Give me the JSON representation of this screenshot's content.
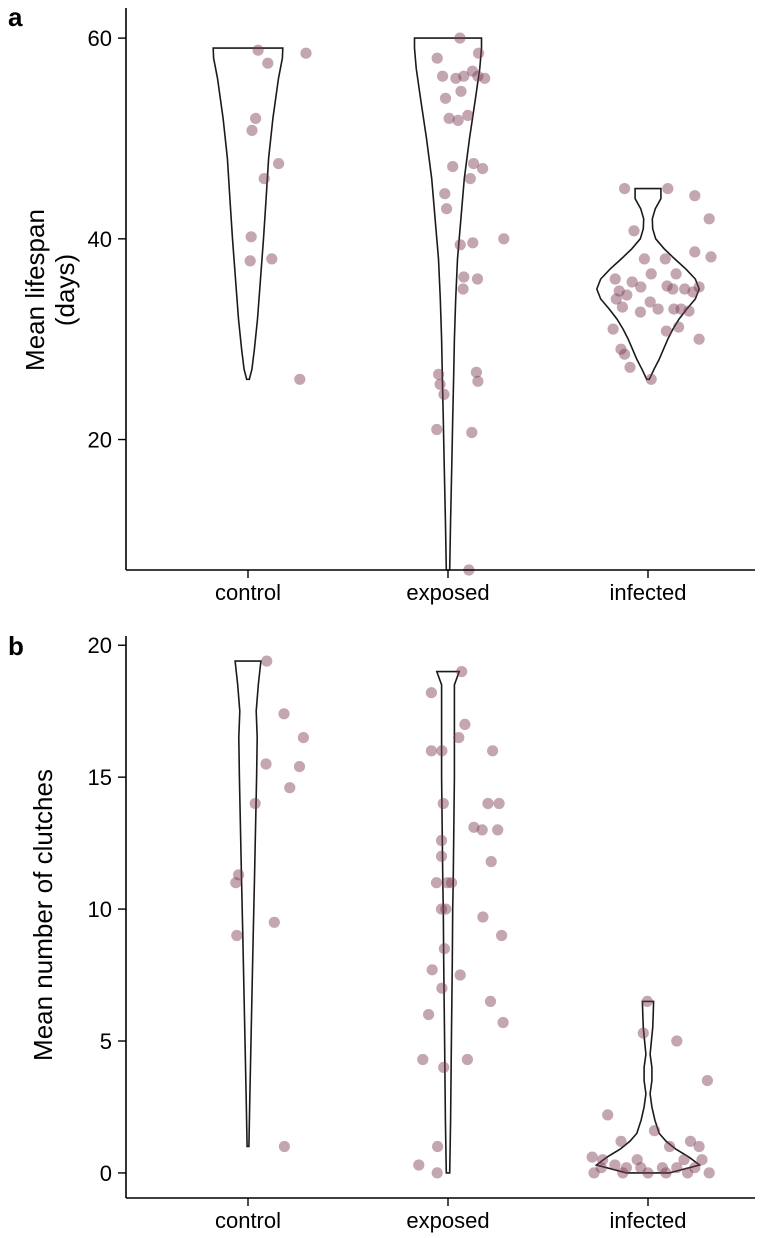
{
  "chart_data": [
    {
      "type": "scatter",
      "panel": "a",
      "ylabel": [
        "Mean lifespan",
        "(days)"
      ],
      "xlabel": "",
      "categories": [
        "control",
        "exposed",
        "infected"
      ],
      "ylim": [
        7,
        63
      ],
      "yticks": [
        20,
        40,
        60
      ],
      "violins": [
        {
          "category": "control",
          "min": 26,
          "max": 59,
          "profile": [
            [
              26,
              0.3
            ],
            [
              27,
              0.9
            ],
            [
              29,
              1.5
            ],
            [
              32,
              2.2
            ],
            [
              36,
              2.9
            ],
            [
              40,
              3.6
            ],
            [
              44,
              4.2
            ],
            [
              48,
              4.8
            ],
            [
              52,
              5.8
            ],
            [
              56,
              7.1
            ],
            [
              58,
              8.0
            ],
            [
              59,
              8.1
            ]
          ]
        },
        {
          "category": "exposed",
          "min": 7,
          "max": 60,
          "profile": [
            [
              7,
              0.4
            ],
            [
              12,
              0.6
            ],
            [
              18,
              0.9
            ],
            [
              22,
              1.1
            ],
            [
              26,
              1.3
            ],
            [
              30,
              1.5
            ],
            [
              34,
              1.8
            ],
            [
              38,
              2.2
            ],
            [
              42,
              3.0
            ],
            [
              46,
              3.8
            ],
            [
              50,
              5.0
            ],
            [
              54,
              6.4
            ],
            [
              57,
              7.4
            ],
            [
              59,
              7.8
            ],
            [
              60,
              7.8
            ]
          ]
        },
        {
          "category": "infected",
          "min": 26,
          "max": 45,
          "profile": [
            [
              26,
              0.3
            ],
            [
              27,
              1.4
            ],
            [
              28,
              2.6
            ],
            [
              29,
              3.6
            ],
            [
              30,
              4.6
            ],
            [
              31,
              5.8
            ],
            [
              32,
              7.2
            ],
            [
              33,
              9.0
            ],
            [
              34,
              11.0
            ],
            [
              35,
              11.9
            ],
            [
              36,
              11.0
            ],
            [
              37,
              8.8
            ],
            [
              38,
              6.2
            ],
            [
              39,
              3.8
            ],
            [
              40,
              1.8
            ],
            [
              41,
              1.1
            ],
            [
              42,
              1.0
            ],
            [
              43,
              1.7
            ],
            [
              44,
              3.0
            ],
            [
              45,
              3.0
            ]
          ]
        }
      ],
      "series": [
        {
          "name": "control",
          "points": [
            [
              0.28,
              58.8
            ],
            [
              0.55,
              57.5
            ],
            [
              1.61,
              58.5
            ],
            [
              0.21,
              52
            ],
            [
              0.11,
              50.8
            ],
            [
              0.45,
              46
            ],
            [
              0.85,
              47.5
            ],
            [
              0.09,
              40.2
            ],
            [
              0.06,
              37.8
            ],
            [
              0.66,
              38
            ],
            [
              1.44,
              26
            ]
          ]
        },
        {
          "name": "exposed",
          "points": [
            [
              -0.3,
              58
            ],
            [
              -0.15,
              56.2
            ],
            [
              0.22,
              56
            ],
            [
              0.44,
              56.2
            ],
            [
              0.68,
              56.7
            ],
            [
              0.83,
              56.2
            ],
            [
              1.02,
              56
            ],
            [
              0.33,
              60
            ],
            [
              0.85,
              58.5
            ],
            [
              -0.07,
              54
            ],
            [
              0.36,
              54.7
            ],
            [
              0.03,
              52
            ],
            [
              0.28,
              51.8
            ],
            [
              0.55,
              52.3
            ],
            [
              0.13,
              47.2
            ],
            [
              0.71,
              47.5
            ],
            [
              0.96,
              47
            ],
            [
              0.62,
              46
            ],
            [
              -0.09,
              44.5
            ],
            [
              -0.04,
              43
            ],
            [
              0.34,
              39.4
            ],
            [
              0.69,
              39.6
            ],
            [
              1.55,
              40
            ],
            [
              0.44,
              36.2
            ],
            [
              0.82,
              36
            ],
            [
              0.42,
              35
            ],
            [
              -0.26,
              26.5
            ],
            [
              -0.22,
              25.5
            ],
            [
              0.79,
              26.7
            ],
            [
              0.83,
              25.8
            ],
            [
              -0.11,
              24.5
            ],
            [
              -0.31,
              21
            ],
            [
              0.66,
              20.7
            ],
            [
              0.58,
              7
            ]
          ]
        },
        {
          "name": "infected",
          "points": [
            [
              -0.65,
              45
            ],
            [
              0.55,
              45
            ],
            [
              1.3,
              44.3
            ],
            [
              1.7,
              42
            ],
            [
              -0.39,
              40.8
            ],
            [
              1.3,
              38.7
            ],
            [
              1.75,
              38.2
            ],
            [
              -0.1,
              38
            ],
            [
              0.48,
              38
            ],
            [
              0.09,
              36.5
            ],
            [
              0.78,
              36.5
            ],
            [
              -0.91,
              36
            ],
            [
              -0.44,
              35.7
            ],
            [
              -0.2,
              35.2
            ],
            [
              -0.8,
              34.8
            ],
            [
              1.02,
              35
            ],
            [
              1.25,
              34.7
            ],
            [
              1.42,
              35.2
            ],
            [
              0.69,
              35
            ],
            [
              0.53,
              35.3
            ],
            [
              -0.59,
              34.4
            ],
            [
              -0.88,
              34
            ],
            [
              0.06,
              33.7
            ],
            [
              -0.71,
              33.2
            ],
            [
              0.28,
              33
            ],
            [
              0.72,
              33
            ],
            [
              0.92,
              33
            ],
            [
              1.14,
              32.8
            ],
            [
              -0.21,
              32.7
            ],
            [
              0.51,
              30.8
            ],
            [
              0.85,
              31.2
            ],
            [
              -0.97,
              31
            ],
            [
              1.42,
              30
            ],
            [
              -0.75,
              29
            ],
            [
              -0.65,
              28.5
            ],
            [
              -0.5,
              27.2
            ],
            [
              0.09,
              26
            ]
          ]
        }
      ]
    },
    {
      "type": "scatter",
      "panel": "b",
      "ylabel": [
        "Mean number of clutches"
      ],
      "xlabel": "",
      "categories": [
        "control",
        "exposed",
        "infected"
      ],
      "ylim": [
        -0.95,
        20.35
      ],
      "yticks": [
        0,
        5,
        10,
        15,
        20
      ],
      "violins": [
        {
          "category": "control",
          "min": 1,
          "max": 19.4,
          "profile": [
            [
              1,
              0.2
            ],
            [
              3,
              0.45
            ],
            [
              5,
              0.7
            ],
            [
              7,
              0.95
            ],
            [
              9,
              1.2
            ],
            [
              11,
              1.5
            ],
            [
              13,
              1.75
            ],
            [
              15,
              2.0
            ],
            [
              16.5,
              2.15
            ],
            [
              17.5,
              1.9
            ],
            [
              18.5,
              2.4
            ],
            [
              19.4,
              3.0
            ]
          ]
        },
        {
          "category": "exposed",
          "min": 0,
          "max": 19,
          "profile": [
            [
              0,
              0.4
            ],
            [
              2,
              0.6
            ],
            [
              5,
              0.8
            ],
            [
              8,
              1.0
            ],
            [
              10,
              1.1
            ],
            [
              11,
              1.2
            ],
            [
              13,
              1.35
            ],
            [
              15,
              1.5
            ],
            [
              17,
              1.5
            ],
            [
              18.5,
              1.5
            ],
            [
              19,
              2.6
            ]
          ]
        },
        {
          "category": "infected",
          "min": 0,
          "max": 6.5,
          "profile": [
            [
              0,
              5.0
            ],
            [
              0.3,
              12.0
            ],
            [
              0.6,
              9.5
            ],
            [
              0.9,
              6.5
            ],
            [
              1.2,
              4.2
            ],
            [
              1.5,
              2.6
            ],
            [
              2,
              1.6
            ],
            [
              2.5,
              0.9
            ],
            [
              3,
              0.5
            ],
            [
              3.5,
              0.9
            ],
            [
              4,
              0.9
            ],
            [
              4.5,
              0.5
            ],
            [
              5,
              0.8
            ],
            [
              5.5,
              1.1
            ],
            [
              6,
              1.2
            ],
            [
              6.5,
              1.3
            ]
          ]
        }
      ],
      "series": [
        {
          "name": "control",
          "points": [
            [
              0.52,
              19.4
            ],
            [
              1.0,
              17.4
            ],
            [
              1.54,
              16.5
            ],
            [
              0.5,
              15.5
            ],
            [
              1.43,
              15.4
            ],
            [
              0.2,
              14
            ],
            [
              1.16,
              14.6
            ],
            [
              -0.26,
              11.3
            ],
            [
              -0.34,
              11
            ],
            [
              -0.31,
              9
            ],
            [
              0.73,
              9.5
            ],
            [
              1.01,
              1
            ]
          ]
        },
        {
          "name": "exposed",
          "points": [
            [
              -0.46,
              18.2
            ],
            [
              0.38,
              19
            ],
            [
              0.47,
              17
            ],
            [
              0.3,
              16.5
            ],
            [
              -0.46,
              16
            ],
            [
              -0.17,
              16
            ],
            [
              1.24,
              16
            ],
            [
              -0.13,
              14
            ],
            [
              0.72,
              13.1
            ],
            [
              0.95,
              13
            ],
            [
              1.11,
              14
            ],
            [
              1.42,
              14
            ],
            [
              1.38,
              13
            ],
            [
              -0.18,
              12.6
            ],
            [
              -0.18,
              12
            ],
            [
              -0.32,
              11
            ],
            [
              -0.02,
              11
            ],
            [
              0.1,
              11
            ],
            [
              1.2,
              11.8
            ],
            [
              -0.18,
              10
            ],
            [
              -0.06,
              10
            ],
            [
              0.97,
              9.7
            ],
            [
              1.49,
              9
            ],
            [
              -0.1,
              8.5
            ],
            [
              -0.44,
              7.7
            ],
            [
              -0.17,
              7
            ],
            [
              0.34,
              7.5
            ],
            [
              -0.54,
              6
            ],
            [
              1.18,
              6.5
            ],
            [
              1.53,
              5.7
            ],
            [
              -0.7,
              4.3
            ],
            [
              0.54,
              4.3
            ],
            [
              -0.12,
              4
            ],
            [
              -0.29,
              1
            ],
            [
              -0.81,
              0.3
            ],
            [
              -0.3,
              0
            ]
          ]
        },
        {
          "name": "infected",
          "points": [
            [
              -0.02,
              6.5
            ],
            [
              -0.13,
              5.3
            ],
            [
              0.8,
              5
            ],
            [
              1.65,
              3.5
            ],
            [
              -1.12,
              2.2
            ],
            [
              -0.75,
              1.2
            ],
            [
              0.18,
              1.6
            ],
            [
              0.6,
              1
            ],
            [
              1.18,
              1.2
            ],
            [
              1.42,
              1
            ],
            [
              -1.55,
              0.6
            ],
            [
              -1.26,
              0.5
            ],
            [
              -0.3,
              0.5
            ],
            [
              1.0,
              0.5
            ],
            [
              1.5,
              0.5
            ],
            [
              -0.92,
              0.3
            ],
            [
              -1.3,
              0.2
            ],
            [
              -0.6,
              0.2
            ],
            [
              -0.2,
              0.2
            ],
            [
              0.4,
              0.2
            ],
            [
              0.8,
              0.2
            ],
            [
              1.3,
              0.2
            ],
            [
              -1.5,
              0
            ],
            [
              -0.7,
              0
            ],
            [
              0,
              0
            ],
            [
              0.5,
              0
            ],
            [
              1.1,
              0
            ],
            [
              1.7,
              0
            ]
          ]
        }
      ]
    }
  ],
  "colors": {
    "point": "#7a3a55",
    "axis": "#000000",
    "violin_stroke": "#1a1a1a",
    "background": "#ffffff"
  },
  "panels": [
    {
      "letter": "a",
      "ytick_labels": [
        "20",
        "40",
        "60"
      ],
      "ylabel_lines": [
        "Mean lifespan",
        "(days)"
      ],
      "xtick_labels": [
        "control",
        "exposed",
        "infected"
      ]
    },
    {
      "letter": "b",
      "ytick_labels": [
        "0",
        "5",
        "10",
        "15",
        "20"
      ],
      "ylabel_lines": [
        "Mean number of clutches"
      ],
      "xtick_labels": [
        "control",
        "exposed",
        "infected"
      ]
    }
  ]
}
